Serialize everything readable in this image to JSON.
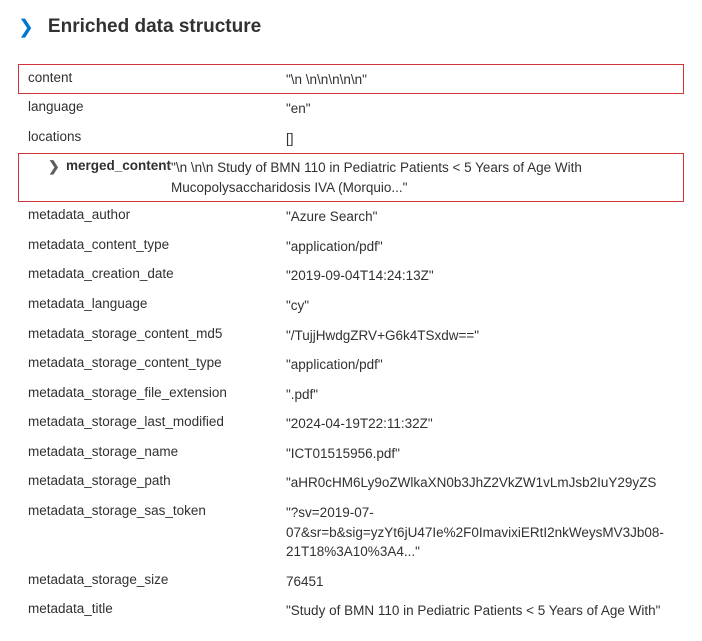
{
  "header": {
    "title": "Enriched data structure"
  },
  "fields": {
    "content": {
      "key": "content",
      "value": "\"\\n \\n\\n\\n\\n\\n\""
    },
    "language": {
      "key": "language",
      "value": "\"en\""
    },
    "locations": {
      "key": "locations",
      "value": "[]"
    },
    "merged_content": {
      "key": "merged_content",
      "value": "\"\\n \\n\\n Study of BMN 110 in Pediatric Patients < 5 Years of Age With Mucopolysaccharidosis IVA (Morquio...\""
    },
    "metadata_author": {
      "key": "metadata_author",
      "value": "\"Azure Search\""
    },
    "metadata_content_type": {
      "key": "metadata_content_type",
      "value": "\"application/pdf\""
    },
    "metadata_creation_date": {
      "key": "metadata_creation_date",
      "value": "\"2019-09-04T14:24:13Z\""
    },
    "metadata_language": {
      "key": "metadata_language",
      "value": "\"cy\""
    },
    "metadata_storage_content_md5": {
      "key": "metadata_storage_content_md5",
      "value": "\"/TujjHwdgZRV+G6k4TSxdw==\""
    },
    "metadata_storage_content_type": {
      "key": "metadata_storage_content_type",
      "value": "\"application/pdf\""
    },
    "metadata_storage_file_extension": {
      "key": "metadata_storage_file_extension",
      "value": "\".pdf\""
    },
    "metadata_storage_last_modified": {
      "key": "metadata_storage_last_modified",
      "value": "\"2024-04-19T22:11:32Z\""
    },
    "metadata_storage_name": {
      "key": "metadata_storage_name",
      "value": "\"ICT01515956.pdf\""
    },
    "metadata_storage_path": {
      "key": "metadata_storage_path",
      "value": "\"aHR0cHM6Ly9oZWlkaXN0b3JhZ2VkZW1vLmJsb2IuY29yZS"
    },
    "metadata_storage_sas_token": {
      "key": "metadata_storage_sas_token",
      "value": "\"?sv=2019-07-07&sr=b&sig=yzYt6jU47Ie%2F0ImavixiERtI2nkWeysMV3Jb08-21T18%3A10%3A4...\""
    },
    "metadata_storage_size": {
      "key": "metadata_storage_size",
      "value": "76451"
    },
    "metadata_title": {
      "key": "metadata_title",
      "value": "\"Study of BMN 110 in Pediatric Patients < 5 Years of Age With\""
    }
  }
}
